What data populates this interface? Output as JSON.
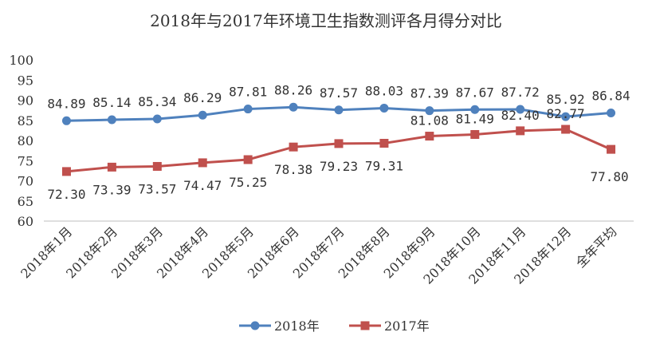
{
  "chart_data": {
    "type": "line",
    "title": "2018年与2017年环境卫生指数测评各月得分对比",
    "categories": [
      "2018年1月",
      "2018年2月",
      "2018年3月",
      "2018年4月",
      "2018年5月",
      "2018年6月",
      "2018年7月",
      "2018年8月",
      "2018年9月",
      "2018年10月",
      "2018年11月",
      "2018年12月",
      "全年平均"
    ],
    "series": [
      {
        "name": "2018年",
        "color": "#4f81bd",
        "marker": "circle",
        "values": [
          84.89,
          85.14,
          85.34,
          86.29,
          87.81,
          88.26,
          87.57,
          88.03,
          87.39,
          87.67,
          87.72,
          85.92,
          86.84
        ],
        "labels": [
          "84.89",
          "85.14",
          "85.34",
          "86.29",
          "87.81",
          "88.26",
          "87.57",
          "88.03",
          "87.39",
          "87.67",
          "87.72",
          "85.92",
          "86.84"
        ]
      },
      {
        "name": "2017年",
        "color": "#c0504d",
        "marker": "square",
        "values": [
          72.3,
          73.39,
          73.57,
          74.47,
          75.25,
          78.38,
          79.23,
          79.31,
          81.08,
          81.49,
          82.4,
          82.77,
          77.8
        ],
        "labels": [
          "72.30",
          "73.39",
          "73.57",
          "74.47",
          "75.25",
          "78.38",
          "79.23",
          "79.31",
          "81.08",
          "81.49",
          "82.40",
          "82.77",
          "77.80"
        ]
      }
    ],
    "ylim": [
      60,
      100
    ],
    "y_ticks": [
      "60",
      "65",
      "70",
      "75",
      "80",
      "85",
      "90",
      "95",
      "100"
    ],
    "grid": false,
    "legend_position": "bottom"
  }
}
